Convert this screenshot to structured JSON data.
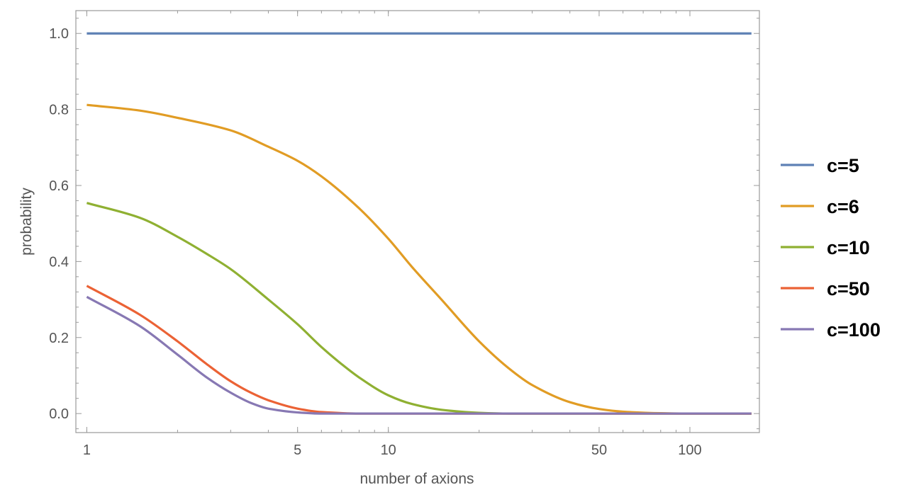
{
  "chart_data": {
    "type": "line",
    "xscale": "log",
    "xlabel": "number of axions",
    "ylabel": "probability",
    "xlim": [
      0.92,
      170
    ],
    "ylim": [
      -0.05,
      1.06
    ],
    "xticks": [
      {
        "value": 1,
        "label": "1"
      },
      {
        "value": 5,
        "label": "5"
      },
      {
        "value": 10,
        "label": "10"
      },
      {
        "value": 50,
        "label": "50"
      },
      {
        "value": 100,
        "label": "100"
      }
    ],
    "yticks": [
      {
        "value": 0.0,
        "label": "0.0"
      },
      {
        "value": 0.2,
        "label": "0.2"
      },
      {
        "value": 0.4,
        "label": "0.4"
      },
      {
        "value": 0.6,
        "label": "0.6"
      },
      {
        "value": 0.8,
        "label": "0.8"
      },
      {
        "value": 1.0,
        "label": "1.0"
      }
    ],
    "legend_position": "right",
    "series": [
      {
        "name": "c=5",
        "color": "#5E81B5",
        "x": [
          1,
          160
        ],
        "y": [
          1.0,
          1.0
        ]
      },
      {
        "name": "c=6",
        "color": "#E19C24",
        "x": [
          1,
          1.5,
          2,
          3,
          4,
          5,
          6,
          8,
          10,
          12,
          15,
          20,
          25,
          30,
          40,
          50,
          60,
          80,
          100,
          160
        ],
        "y": [
          0.812,
          0.797,
          0.778,
          0.745,
          0.702,
          0.665,
          0.624,
          0.54,
          0.46,
          0.385,
          0.3,
          0.19,
          0.12,
          0.075,
          0.03,
          0.012,
          0.005,
          0.001,
          0.0,
          0.0
        ]
      },
      {
        "name": "c=10",
        "color": "#8FB032",
        "x": [
          1,
          1.5,
          2,
          2.5,
          3,
          4,
          5,
          6,
          7,
          8,
          10,
          12,
          15,
          20,
          25,
          30,
          50,
          160
        ],
        "y": [
          0.554,
          0.515,
          0.465,
          0.42,
          0.38,
          0.3,
          0.235,
          0.175,
          0.13,
          0.095,
          0.048,
          0.025,
          0.01,
          0.002,
          0.0,
          0.0,
          0.0,
          0.0
        ]
      },
      {
        "name": "c=50",
        "color": "#EB6235",
        "x": [
          1,
          1.5,
          2,
          2.5,
          3,
          3.5,
          4,
          5,
          6,
          8,
          10,
          160
        ],
        "y": [
          0.336,
          0.26,
          0.19,
          0.13,
          0.085,
          0.055,
          0.035,
          0.013,
          0.004,
          0.0,
          0.0,
          0.0
        ]
      },
      {
        "name": "c=100",
        "color": "#8778B3",
        "x": [
          1,
          1.5,
          2,
          2.5,
          3,
          3.5,
          4,
          5,
          6,
          8,
          160
        ],
        "y": [
          0.307,
          0.23,
          0.155,
          0.095,
          0.055,
          0.028,
          0.013,
          0.003,
          0.0,
          0.0,
          0.0
        ]
      }
    ]
  }
}
